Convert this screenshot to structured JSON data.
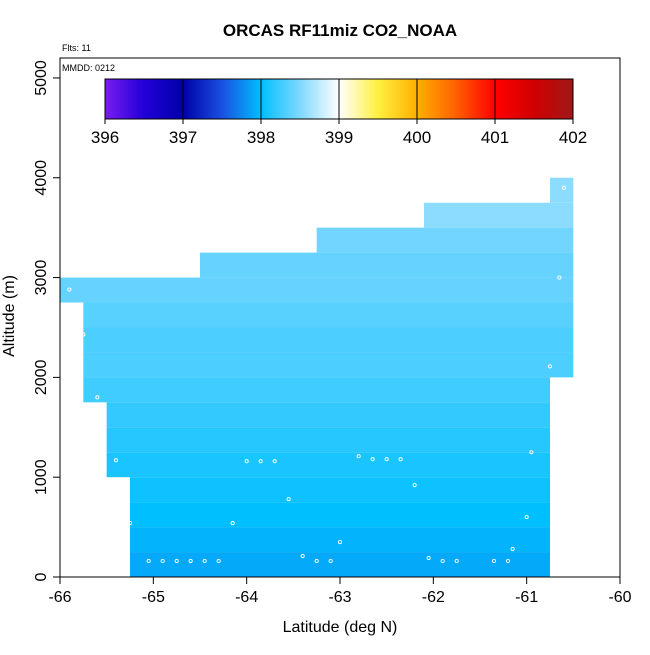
{
  "chart_data": {
    "type": "heatmap",
    "title": "ORCAS RF11miz CO2_NOAA",
    "annotations": {
      "flights": "Flts: 11",
      "date": "MMDD: 0212"
    },
    "xlabel": "Latitude (deg N)",
    "ylabel": "Altitude (m)",
    "xlim": [
      -66,
      -60
    ],
    "ylim": [
      0,
      5200
    ],
    "x_ticks": [
      -66,
      -65,
      -64,
      -63,
      -62,
      -61,
      -60
    ],
    "y_ticks": [
      0,
      1000,
      2000,
      3000,
      4000,
      5000
    ],
    "grid": false,
    "colorbar": {
      "placement": "top-left",
      "min": 396,
      "max": 402,
      "ticks": [
        396,
        397,
        398,
        399,
        400,
        401,
        402
      ],
      "stops": [
        {
          "value": 396,
          "color": "#7a1cf0"
        },
        {
          "value": 396.5,
          "color": "#2200d8"
        },
        {
          "value": 397,
          "color": "#0000a8"
        },
        {
          "value": 397.5,
          "color": "#1a50e0"
        },
        {
          "value": 398,
          "color": "#00bfff"
        },
        {
          "value": 398.5,
          "color": "#7fd8ff"
        },
        {
          "value": 399,
          "color": "#ffffff"
        },
        {
          "value": 399.5,
          "color": "#fff040"
        },
        {
          "value": 400,
          "color": "#ffb000"
        },
        {
          "value": 400.5,
          "color": "#ff6000"
        },
        {
          "value": 401,
          "color": "#ff0000"
        },
        {
          "value": 401.5,
          "color": "#d00000"
        },
        {
          "value": 402,
          "color": "#a01818"
        }
      ]
    },
    "cells": [
      {
        "x0": -60.75,
        "x1": -60.5,
        "y0": 3750,
        "y1": 4000,
        "value": 398.55
      },
      {
        "x0": -62.1,
        "x1": -60.5,
        "y0": 3500,
        "y1": 3750,
        "value": 398.55
      },
      {
        "x0": -63.25,
        "x1": -60.5,
        "y0": 3250,
        "y1": 3500,
        "value": 398.45
      },
      {
        "x0": -64.5,
        "x1": -60.5,
        "y0": 3000,
        "y1": 3250,
        "value": 398.4
      },
      {
        "x0": -66.0,
        "x1": -60.5,
        "y0": 2750,
        "y1": 3000,
        "value": 398.4
      },
      {
        "x0": -65.75,
        "x1": -60.5,
        "y0": 2500,
        "y1": 2750,
        "value": 398.35
      },
      {
        "x0": -65.75,
        "x1": -60.5,
        "y0": 2250,
        "y1": 2500,
        "value": 398.3
      },
      {
        "x0": -65.75,
        "x1": -60.5,
        "y0": 2000,
        "y1": 2250,
        "value": 398.3
      },
      {
        "x0": -65.75,
        "x1": -60.75,
        "y0": 1750,
        "y1": 2000,
        "value": 398.25
      },
      {
        "x0": -65.5,
        "x1": -60.75,
        "y0": 1500,
        "y1": 1750,
        "value": 398.2
      },
      {
        "x0": -65.5,
        "x1": -60.75,
        "y0": 1250,
        "y1": 1500,
        "value": 398.15
      },
      {
        "x0": -65.5,
        "x1": -60.75,
        "y0": 1000,
        "y1": 1250,
        "value": 398.1
      },
      {
        "x0": -65.25,
        "x1": -60.75,
        "y0": 750,
        "y1": 1000,
        "value": 398.05
      },
      {
        "x0": -65.25,
        "x1": -60.75,
        "y0": 500,
        "y1": 750,
        "value": 398.0
      },
      {
        "x0": -65.25,
        "x1": -60.75,
        "y0": 250,
        "y1": 500,
        "value": 397.95
      },
      {
        "x0": -65.25,
        "x1": -60.75,
        "y0": 0,
        "y1": 250,
        "value": 397.9
      }
    ],
    "sample_points": [
      {
        "x": -60.6,
        "y": 3900
      },
      {
        "x": -60.65,
        "y": 3000
      },
      {
        "x": -65.9,
        "y": 2880
      },
      {
        "x": -65.75,
        "y": 2430
      },
      {
        "x": -60.75,
        "y": 2110
      },
      {
        "x": -65.6,
        "y": 1800
      },
      {
        "x": -65.4,
        "y": 1170
      },
      {
        "x": -64.0,
        "y": 1160
      },
      {
        "x": -63.85,
        "y": 1160
      },
      {
        "x": -63.7,
        "y": 1160
      },
      {
        "x": -62.8,
        "y": 1210
      },
      {
        "x": -62.65,
        "y": 1180
      },
      {
        "x": -62.5,
        "y": 1180
      },
      {
        "x": -62.35,
        "y": 1180
      },
      {
        "x": -60.95,
        "y": 1250
      },
      {
        "x": -62.2,
        "y": 920
      },
      {
        "x": -63.55,
        "y": 780
      },
      {
        "x": -65.25,
        "y": 540
      },
      {
        "x": -64.15,
        "y": 540
      },
      {
        "x": -61.0,
        "y": 600
      },
      {
        "x": -63.0,
        "y": 350
      },
      {
        "x": -61.15,
        "y": 280
      },
      {
        "x": -63.4,
        "y": 210
      },
      {
        "x": -62.05,
        "y": 190
      },
      {
        "x": -65.05,
        "y": 160
      },
      {
        "x": -64.9,
        "y": 160
      },
      {
        "x": -64.75,
        "y": 160
      },
      {
        "x": -64.6,
        "y": 160
      },
      {
        "x": -64.45,
        "y": 160
      },
      {
        "x": -64.3,
        "y": 160
      },
      {
        "x": -63.25,
        "y": 160
      },
      {
        "x": -63.1,
        "y": 160
      },
      {
        "x": -61.9,
        "y": 160
      },
      {
        "x": -61.75,
        "y": 160
      },
      {
        "x": -61.35,
        "y": 160
      },
      {
        "x": -61.2,
        "y": 160
      }
    ]
  }
}
